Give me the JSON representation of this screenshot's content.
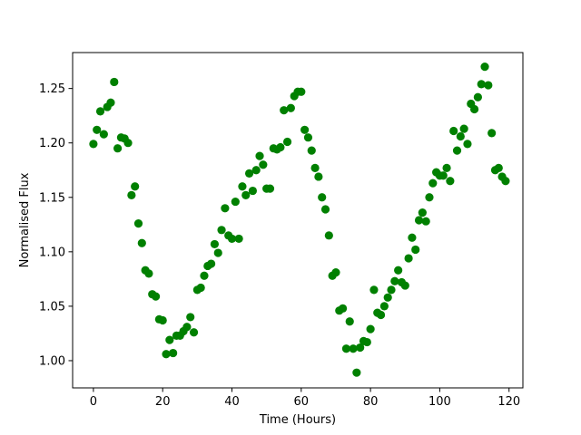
{
  "chart_data": {
    "type": "scatter",
    "title": "",
    "xlabel": "Time (Hours)",
    "ylabel": "Normalised Flux",
    "xlim": [
      -6,
      124
    ],
    "ylim": [
      0.975,
      1.283
    ],
    "xticks": [
      0,
      20,
      40,
      60,
      80,
      100,
      120
    ],
    "xtick_labels": [
      "0",
      "20",
      "40",
      "60",
      "80",
      "100",
      "120"
    ],
    "yticks": [
      1.0,
      1.05,
      1.1,
      1.15,
      1.2,
      1.25
    ],
    "ytick_labels": [
      "1.00",
      "1.05",
      "1.10",
      "1.15",
      "1.20",
      "1.25"
    ],
    "grid": false,
    "marker_color": "#008000",
    "x": [
      0,
      1,
      2,
      3,
      4,
      5,
      6,
      7,
      8,
      9,
      10,
      11,
      12,
      13,
      14,
      15,
      16,
      17,
      18,
      19,
      20,
      21,
      22,
      23,
      24,
      25,
      26,
      27,
      28,
      29,
      30,
      31,
      32,
      33,
      34,
      35,
      36,
      37,
      38,
      39,
      40,
      41,
      42,
      43,
      44,
      45,
      46,
      47,
      48,
      49,
      50,
      51,
      52,
      53,
      54,
      55,
      56,
      57,
      58,
      59,
      60,
      61,
      62,
      63,
      64,
      65,
      66,
      67,
      68,
      69,
      70,
      71,
      72,
      73,
      74,
      75,
      76,
      77,
      78,
      79,
      80,
      81,
      82,
      83,
      84,
      85,
      86,
      87,
      88,
      89,
      90,
      91,
      92,
      93,
      94,
      95,
      96,
      97,
      98,
      99,
      100,
      101,
      102,
      103,
      104,
      105,
      106,
      107,
      108,
      109,
      110,
      111,
      112,
      113,
      114,
      115,
      116,
      117,
      118,
      119
    ],
    "y": [
      1.199,
      1.212,
      1.229,
      1.208,
      1.233,
      1.237,
      1.256,
      1.195,
      1.205,
      1.204,
      1.2,
      1.152,
      1.16,
      1.126,
      1.108,
      1.083,
      1.08,
      1.061,
      1.059,
      1.038,
      1.037,
      1.006,
      1.019,
      1.007,
      1.023,
      1.023,
      1.027,
      1.031,
      1.04,
      1.026,
      1.065,
      1.067,
      1.078,
      1.087,
      1.089,
      1.107,
      1.099,
      1.12,
      1.14,
      1.115,
      1.112,
      1.146,
      1.112,
      1.16,
      1.152,
      1.172,
      1.156,
      1.175,
      1.188,
      1.18,
      1.158,
      1.158,
      1.195,
      1.194,
      1.196,
      1.23,
      1.201,
      1.232,
      1.243,
      1.247,
      1.247,
      1.212,
      1.205,
      1.193,
      1.177,
      1.169,
      1.15,
      1.139,
      1.115,
      1.078,
      1.081,
      1.046,
      1.048,
      1.011,
      1.036,
      1.011,
      0.989,
      1.012,
      1.018,
      1.017,
      1.029,
      1.065,
      1.044,
      1.042,
      1.05,
      1.058,
      1.065,
      1.073,
      1.083,
      1.072,
      1.069,
      1.094,
      1.113,
      1.102,
      1.129,
      1.136,
      1.128,
      1.15,
      1.163,
      1.173,
      1.17,
      1.17,
      1.177,
      1.165,
      1.211,
      1.193,
      1.206,
      1.213,
      1.199,
      1.236,
      1.231,
      1.242,
      1.254,
      1.27,
      1.253,
      1.209,
      1.175,
      1.177,
      1.169,
      1.165
    ]
  }
}
